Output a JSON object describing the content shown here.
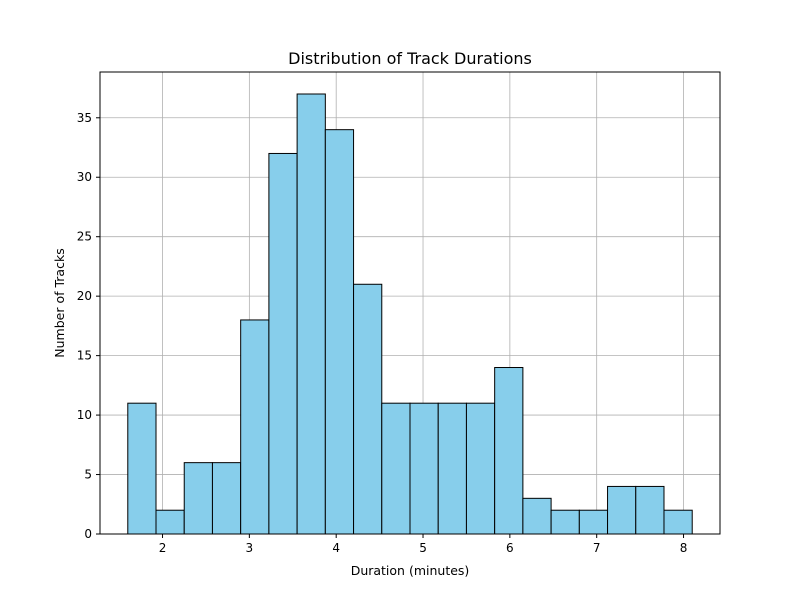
{
  "chart_data": {
    "type": "bar",
    "title": "Distribution of Track Durations",
    "xlabel": "Duration (minutes)",
    "ylabel": "Number of Tracks",
    "xlim": [
      1.28,
      8.42
    ],
    "ylim": [
      0,
      38.85
    ],
    "xticks": [
      2,
      3,
      4,
      5,
      6,
      7,
      8
    ],
    "yticks": [
      0,
      5,
      10,
      15,
      20,
      25,
      30,
      35
    ],
    "grid": true,
    "bar_color": "#87ceeb",
    "edge_color": "#000000",
    "bins": [
      {
        "start": 1.6,
        "end": 1.925,
        "count": 11
      },
      {
        "start": 1.925,
        "end": 2.25,
        "count": 2
      },
      {
        "start": 2.25,
        "end": 2.575,
        "count": 6
      },
      {
        "start": 2.575,
        "end": 2.9,
        "count": 6
      },
      {
        "start": 2.9,
        "end": 3.225,
        "count": 18
      },
      {
        "start": 3.225,
        "end": 3.55,
        "count": 32
      },
      {
        "start": 3.55,
        "end": 3.875,
        "count": 37
      },
      {
        "start": 3.875,
        "end": 4.2,
        "count": 34
      },
      {
        "start": 4.2,
        "end": 4.525,
        "count": 21
      },
      {
        "start": 4.525,
        "end": 4.85,
        "count": 11
      },
      {
        "start": 4.85,
        "end": 5.175,
        "count": 11
      },
      {
        "start": 5.175,
        "end": 5.5,
        "count": 11
      },
      {
        "start": 5.5,
        "end": 5.825,
        "count": 11
      },
      {
        "start": 5.825,
        "end": 6.15,
        "count": 14
      },
      {
        "start": 6.15,
        "end": 6.475,
        "count": 3
      },
      {
        "start": 6.475,
        "end": 6.8,
        "count": 2
      },
      {
        "start": 6.8,
        "end": 7.125,
        "count": 2
      },
      {
        "start": 7.125,
        "end": 7.45,
        "count": 4
      },
      {
        "start": 7.45,
        "end": 7.775,
        "count": 4
      },
      {
        "start": 7.775,
        "end": 8.1,
        "count": 2
      }
    ]
  }
}
